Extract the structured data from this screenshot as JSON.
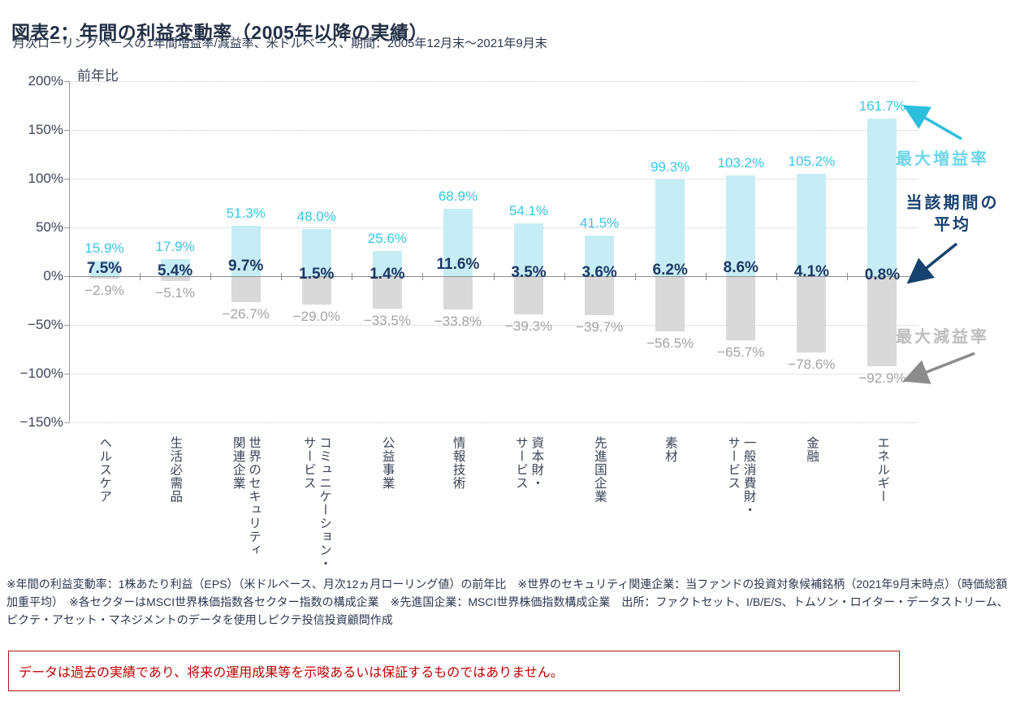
{
  "header": {
    "title": "図表2：年間の利益変動率（2005年以降の実績）",
    "subtitle": "月次ローリングベースの1年間増益率/減益率、米ドルベース、期間：2005年12月末～2021年9月末"
  },
  "chart_data": {
    "type": "bar",
    "unit_label": "前年比",
    "categories": [
      "ヘルスケア",
      "生活必需品",
      "世界のセキュリティ\n関連企業",
      "コミュニケーション・\nサービス",
      "公益事業",
      "情報技術",
      "資本財・\nサービス",
      "先進国企業",
      "素材",
      "一般消費財・\nサービス",
      "金融",
      "エネルギー"
    ],
    "series": [
      {
        "name": "最大増益率",
        "values": [
          15.9,
          17.9,
          51.3,
          48.0,
          25.6,
          68.9,
          54.1,
          41.5,
          99.3,
          103.2,
          105.2,
          161.7
        ],
        "bar_color": "#c6edf5",
        "label_color": "#38c6e4"
      },
      {
        "name": "当該期間の平均",
        "values": [
          7.5,
          5.4,
          9.7,
          1.5,
          1.4,
          11.6,
          3.5,
          3.6,
          6.2,
          8.6,
          4.1,
          0.8
        ],
        "bar_color": null,
        "label_color": "#1f3864"
      },
      {
        "name": "最大減益率",
        "values": [
          -2.9,
          -5.1,
          -26.7,
          -29.0,
          -33.5,
          -33.8,
          -39.3,
          -39.7,
          -56.5,
          -65.7,
          -78.6,
          -92.9
        ],
        "bar_color": "#d9d9d9",
        "label_color": "#a3a3a3"
      }
    ],
    "ylim": [
      -150,
      200
    ],
    "ytick_step": 50,
    "ytick_labels": [
      "200%",
      "150%",
      "100%",
      "50%",
      "0%",
      "−50%",
      "−100%",
      "−150%"
    ],
    "grid": true,
    "legend_position": "right-annotations"
  },
  "annotations": {
    "max_gain": {
      "text": "最大増益率",
      "color": "#6fd6ea",
      "arrow_color": "#2bbfdd"
    },
    "average": {
      "line1": "当該期間の",
      "line2": "平均",
      "color": "#17416f",
      "arrow_color": "#17416f"
    },
    "max_loss": {
      "text": "最大減益率",
      "color": "#bebebe",
      "arrow_color": "#8c8c8c"
    }
  },
  "footnote": "※年間の利益変動率：1株あたり利益（EPS）（米ドルベース、月次12ヵ月ローリング値）の前年比　※世界のセキュリティ関連企業：当ファンドの投資対象候補銘柄（2021年9月末時点）（時価総額加重平均）　※各セクターはMSCI世界株価指数各セクター指数の構成企業　※先進国企業：MSCI世界株価指数構成企業　出所：ファクトセット、I/B/E/S、トムソン・ロイター・データストリーム、ピクテ・アセット・マネジメントのデータを使用しピクテ投信投資顧問作成",
  "disclaimer": {
    "text": "データは過去の実績であり、将来の運用成果等を示唆あるいは保証するものではありません。",
    "color": "#c00000"
  }
}
